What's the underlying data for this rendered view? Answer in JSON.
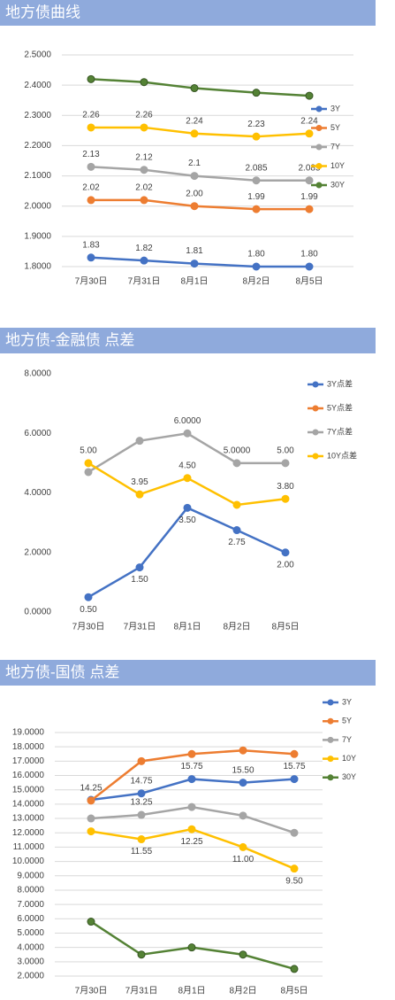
{
  "chart_data": [
    {
      "type": "line",
      "title": "地方债曲线",
      "categories": [
        "7月30日",
        "7月31日",
        "8月1日",
        "8月2日",
        "8月5日"
      ],
      "ylim": [
        1.8,
        2.5
      ],
      "yticks": [
        {
          "value": 1.8,
          "label": "1.8000"
        },
        {
          "value": 1.9,
          "label": "1.9000"
        },
        {
          "value": 2.0,
          "label": "2.0000"
        },
        {
          "value": 2.1,
          "label": "2.1000"
        },
        {
          "value": 2.2,
          "label": "2.2000"
        },
        {
          "value": 2.3,
          "label": "2.3000"
        },
        {
          "value": 2.4,
          "label": "2.4000"
        },
        {
          "value": 2.5,
          "label": "2.5000"
        }
      ],
      "grid": true,
      "legend": "right",
      "series": [
        {
          "name": "3Y",
          "color": "#4472c4",
          "values": [
            1.83,
            1.82,
            1.81,
            1.8,
            1.8
          ],
          "value_labels": [
            "1.83",
            "1.82",
            "1.81",
            "1.80",
            "1.80"
          ]
        },
        {
          "name": "5Y",
          "color": "#ed7d31",
          "values": [
            2.02,
            2.02,
            2.0,
            1.99,
            1.99
          ],
          "value_labels": [
            "2.02",
            "2.02",
            "2.00",
            "1.99",
            "1.99"
          ]
        },
        {
          "name": "7Y",
          "color": "#a5a5a5",
          "values": [
            2.13,
            2.12,
            2.1,
            2.085,
            2.085
          ],
          "value_labels": [
            "2.13",
            "2.12",
            "2.1",
            "2.085",
            "2.085"
          ]
        },
        {
          "name": "10Y",
          "color": "#ffc000",
          "values": [
            2.26,
            2.26,
            2.24,
            2.23,
            2.24
          ],
          "value_labels": [
            "2.26",
            "2.26",
            "2.24",
            "2.23",
            "2.24"
          ]
        },
        {
          "name": "30Y",
          "color": "#548235",
          "values": [
            2.42,
            2.41,
            2.39,
            2.375,
            2.365
          ]
        }
      ]
    },
    {
      "type": "line",
      "title": "地方债-金融债 点差",
      "categories": [
        "7月30日",
        "7月31日",
        "8月1日",
        "8月2日",
        "8月5日"
      ],
      "ylim": [
        0,
        8
      ],
      "yticks": [
        {
          "value": 0,
          "label": "0.0000"
        },
        {
          "value": 2,
          "label": "2.0000"
        },
        {
          "value": 4,
          "label": "4.0000"
        },
        {
          "value": 6,
          "label": "6.0000"
        },
        {
          "value": 8,
          "label": "8.0000"
        }
      ],
      "grid": false,
      "legend": "right",
      "series": [
        {
          "name": "3Y点差",
          "color": "#4472c4",
          "values": [
            0.5,
            1.5,
            3.5,
            2.75,
            2.0
          ],
          "value_labels": [
            "0.50",
            "1.50",
            "3.50",
            "2.75",
            "2.00"
          ]
        },
        {
          "name": "5Y点差",
          "color": "#ed7d31",
          "values": [
            null,
            null,
            null,
            null,
            null
          ]
        },
        {
          "name": "7Y点差",
          "color": "#a5a5a5",
          "values": [
            4.7,
            5.75,
            6.0,
            5.0,
            5.0
          ],
          "value_labels": [
            null,
            null,
            "6.0000",
            "5.0000",
            "5.00"
          ]
        },
        {
          "name": "10Y点差",
          "color": "#ffc000",
          "values": [
            5.0,
            3.95,
            4.5,
            3.6,
            3.8
          ],
          "value_labels": [
            "5.00",
            "3.95",
            "4.50",
            null,
            "3.80"
          ]
        }
      ]
    },
    {
      "type": "line",
      "title": "地方债-国债 点差",
      "categories": [
        "7月30日",
        "7月31日",
        "8月1日",
        "8月2日",
        "8月5日"
      ],
      "ylim": [
        2,
        19
      ],
      "yticks": [
        {
          "value": 2,
          "label": "2.0000"
        },
        {
          "value": 3,
          "label": "3.0000"
        },
        {
          "value": 4,
          "label": "4.0000"
        },
        {
          "value": 5,
          "label": "5.0000"
        },
        {
          "value": 6,
          "label": "6.0000"
        },
        {
          "value": 7,
          "label": "7.0000"
        },
        {
          "value": 8,
          "label": "8.0000"
        },
        {
          "value": 9,
          "label": "9.0000"
        },
        {
          "value": 10,
          "label": "10.0000"
        },
        {
          "value": 11,
          "label": "11.0000"
        },
        {
          "value": 12,
          "label": "12.0000"
        },
        {
          "value": 13,
          "label": "13.0000"
        },
        {
          "value": 14,
          "label": "14.0000"
        },
        {
          "value": 15,
          "label": "15.0000"
        },
        {
          "value": 16,
          "label": "16.0000"
        },
        {
          "value": 17,
          "label": "17.0000"
        },
        {
          "value": 18,
          "label": "18.0000"
        },
        {
          "value": 19,
          "label": "19.0000"
        }
      ],
      "grid": true,
      "legend": "top-right",
      "series": [
        {
          "name": "3Y",
          "color": "#4472c4",
          "values": [
            14.3,
            14.75,
            15.75,
            15.5,
            15.75
          ],
          "value_labels": [
            null,
            "14.75",
            "15.75",
            "15.50",
            "15.75"
          ]
        },
        {
          "name": "5Y",
          "color": "#ed7d31",
          "values": [
            14.25,
            17.0,
            17.5,
            17.75,
            17.5
          ],
          "value_labels": [
            "14.25",
            null,
            null,
            null,
            null
          ]
        },
        {
          "name": "7Y",
          "color": "#a5a5a5",
          "values": [
            13.0,
            13.25,
            13.8,
            13.2,
            12.0
          ],
          "value_labels": [
            null,
            "13.25",
            null,
            null,
            null
          ]
        },
        {
          "name": "10Y",
          "color": "#ffc000",
          "values": [
            12.1,
            11.55,
            12.25,
            11.0,
            9.5
          ],
          "value_labels": [
            null,
            "11.55",
            "12.25",
            "11.00",
            "9.50"
          ]
        },
        {
          "name": "30Y",
          "color": "#548235",
          "values": [
            5.8,
            3.5,
            4.0,
            3.5,
            2.5
          ]
        }
      ]
    }
  ]
}
